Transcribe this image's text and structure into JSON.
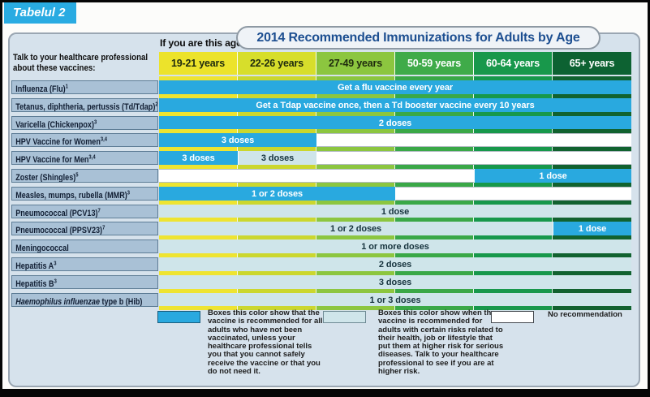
{
  "tab_label": "Tabelul 2",
  "header": {
    "talk_label": "Talk to your healthcare professional about these vaccines:",
    "age_prompt": "If you are this age,"
  },
  "colors": {
    "recommended": "#29a9df",
    "risk": "#cfe5ea",
    "none": "#ffffff",
    "tab_bg": "#29abe2",
    "title_fg": "#1d4f91",
    "panel_bg": "#d6e2ec",
    "label_bg": "#a9c1d6",
    "header_cells": [
      {
        "bg": "#ece32b",
        "fg": "#1f2b0e"
      },
      {
        "bg": "#d7de2b",
        "fg": "#1f2b0e"
      },
      {
        "bg": "#8cc63f",
        "fg": "#1f2b0e"
      },
      {
        "bg": "#3fab49",
        "fg": "#ffffff"
      },
      {
        "bg": "#18984b",
        "fg": "#ffffff"
      },
      {
        "bg": "#0d6232",
        "fg": "#ffffff"
      }
    ],
    "row_strips": [
      "#eee431",
      "#cbd72e",
      "#8cc63f",
      "#3aa847",
      "#17984b",
      "#11622f"
    ]
  },
  "chart_data": {
    "type": "table",
    "title": "2014 Recommended Immunizations for Adults by Age",
    "age_groups": [
      "19-21 years",
      "22-26 years",
      "27-49 years",
      "50-59 years",
      "60-64 years",
      "65+ years"
    ],
    "status_values": [
      "recommended",
      "risk",
      "none"
    ],
    "rows": [
      {
        "vaccine": "Influenza (Flu)",
        "sup": "1",
        "segments": [
          {
            "cols": 6,
            "status": "recommended",
            "text": "Get a flu vaccine every year"
          }
        ]
      },
      {
        "vaccine": "Tetanus, diphtheria, pertussis (Td/Tdap)",
        "sup": "2",
        "segments": [
          {
            "cols": 6,
            "status": "recommended",
            "text": "Get a Tdap vaccine once, then a Td booster vaccine every 10 years"
          }
        ]
      },
      {
        "vaccine": "Varicella (Chickenpox)",
        "sup": "3",
        "segments": [
          {
            "cols": 6,
            "status": "recommended",
            "text": "2 doses"
          }
        ]
      },
      {
        "vaccine": "HPV Vaccine for Women",
        "sup": "3,4",
        "segments": [
          {
            "cols": 2,
            "status": "recommended",
            "text": "3 doses"
          },
          {
            "cols": 4,
            "status": "none",
            "text": ""
          }
        ]
      },
      {
        "vaccine": "HPV Vaccine for Men",
        "sup": "3,4",
        "segments": [
          {
            "cols": 1,
            "status": "recommended",
            "text": "3 doses"
          },
          {
            "cols": 1,
            "status": "risk",
            "text": "3 doses"
          },
          {
            "cols": 4,
            "status": "none",
            "text": ""
          }
        ]
      },
      {
        "vaccine": "Zoster (Shingles)",
        "sup": "5",
        "segments": [
          {
            "cols": 4,
            "status": "none",
            "text": ""
          },
          {
            "cols": 2,
            "status": "recommended",
            "text": "1 dose"
          }
        ]
      },
      {
        "vaccine": "Measles, mumps, rubella (MMR)",
        "sup": "3",
        "segments": [
          {
            "cols": 3,
            "status": "recommended",
            "text": "1 or 2 doses"
          },
          {
            "cols": 3,
            "status": "none",
            "text": ""
          }
        ]
      },
      {
        "vaccine": "Pneumococcal (PCV13)",
        "sup": "7",
        "segments": [
          {
            "cols": 6,
            "status": "risk",
            "text": "1 dose"
          }
        ]
      },
      {
        "vaccine": "Pneumococcal (PPSV23)",
        "sup": "7",
        "segments": [
          {
            "cols": 5,
            "status": "risk",
            "text": "1 or 2 doses"
          },
          {
            "cols": 1,
            "status": "recommended",
            "text": "1 dose"
          }
        ]
      },
      {
        "vaccine": "Meningococcal",
        "sup": "",
        "segments": [
          {
            "cols": 6,
            "status": "risk",
            "text": "1 or more doses"
          }
        ]
      },
      {
        "vaccine": "Hepatitis A",
        "sup": "3",
        "segments": [
          {
            "cols": 6,
            "status": "risk",
            "text": "2 doses"
          }
        ]
      },
      {
        "vaccine": "Hepatitis B",
        "sup": "3",
        "segments": [
          {
            "cols": 6,
            "status": "risk",
            "text": "3 doses"
          }
        ]
      },
      {
        "vaccine_italic": "Haemophilus influenzae",
        "vaccine": " type b (Hib)",
        "sup": "",
        "segments": [
          {
            "cols": 6,
            "status": "risk",
            "text": "1 or 3 doses"
          }
        ]
      }
    ]
  },
  "legend": [
    {
      "status": "recommended",
      "text": "Boxes this color show that the vaccine is recommended for all adults who have not been vaccinated, unless your healthcare professional tells you that you cannot safely receive the vaccine or that you do not need it."
    },
    {
      "status": "risk",
      "text": "Boxes this color show when the vaccine is recommended for adults with certain risks related to their health, job or lifestyle that put them at higher risk for serious diseases. Talk to your healthcare professional to see if you are at higher risk."
    },
    {
      "status": "none",
      "text": "No recommendation"
    }
  ]
}
